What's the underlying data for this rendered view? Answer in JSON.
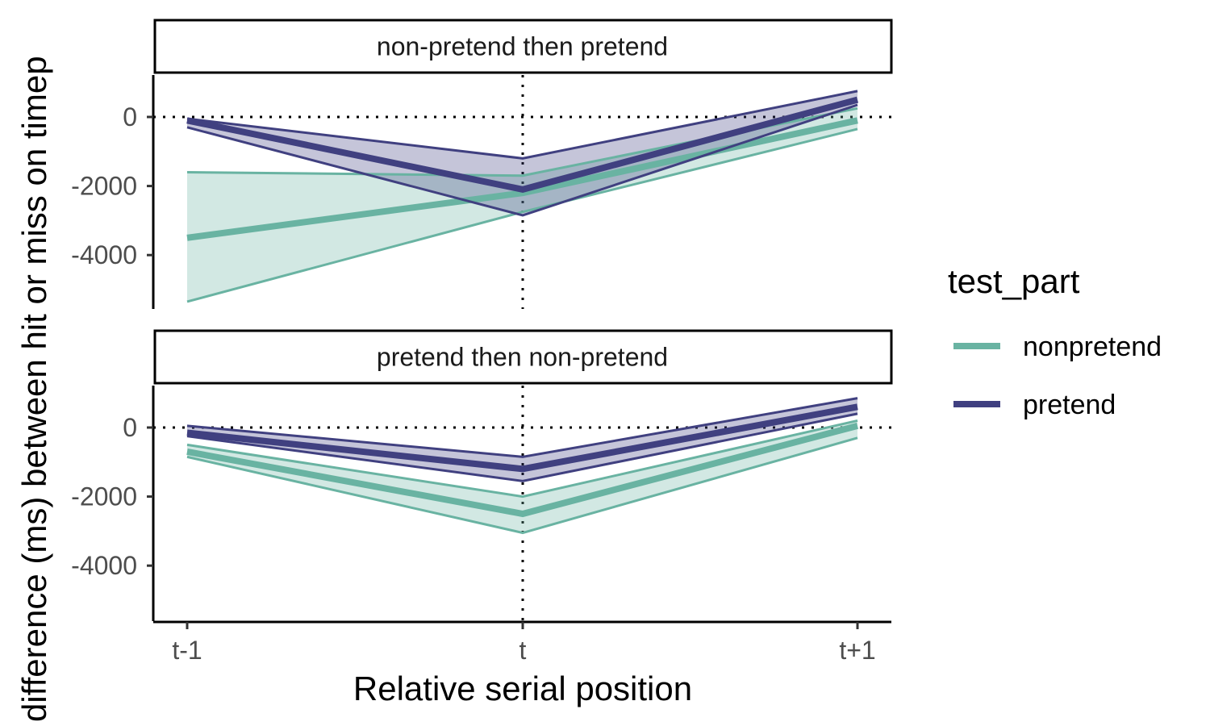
{
  "chart_data": {
    "type": "line",
    "x": [
      "t-1",
      "t",
      "t+1"
    ],
    "xlabel": "Relative serial position",
    "ylabel": "difference (ms) between hit or miss on timep",
    "yticks": [
      0,
      -2000,
      -4000
    ],
    "ylim": [
      -5700,
      1100
    ],
    "reference_lines": {
      "y": 0,
      "x": "t",
      "style": "dotted"
    },
    "legend": {
      "title": "test_part",
      "position": "right",
      "entries": [
        {
          "name": "nonpretend",
          "color": "#69B3A2"
        },
        {
          "name": "pretend",
          "color": "#404080"
        }
      ]
    },
    "panels": [
      {
        "title": "non-pretend then pretend",
        "series": [
          {
            "name": "nonpretend",
            "color": "#69B3A2",
            "mean": [
              -3500,
              -2200,
              -100
            ],
            "lower": [
              -5350,
              -2750,
              -350
            ],
            "upper": [
              -1600,
              -1700,
              250
            ]
          },
          {
            "name": "pretend",
            "color": "#404080",
            "mean": [
              -100,
              -2100,
              500
            ],
            "lower": [
              -300,
              -2850,
              350
            ],
            "upper": [
              -50,
              -1200,
              750
            ]
          }
        ]
      },
      {
        "title": "pretend then non-pretend",
        "series": [
          {
            "name": "nonpretend",
            "color": "#69B3A2",
            "mean": [
              -700,
              -2500,
              50
            ],
            "lower": [
              -850,
              -3050,
              -300
            ],
            "upper": [
              -500,
              -2000,
              200
            ]
          },
          {
            "name": "pretend",
            "color": "#404080",
            "mean": [
              -150,
              -1200,
              600
            ],
            "lower": [
              -250,
              -1550,
              400
            ],
            "upper": [
              50,
              -850,
              850
            ]
          }
        ]
      }
    ]
  }
}
